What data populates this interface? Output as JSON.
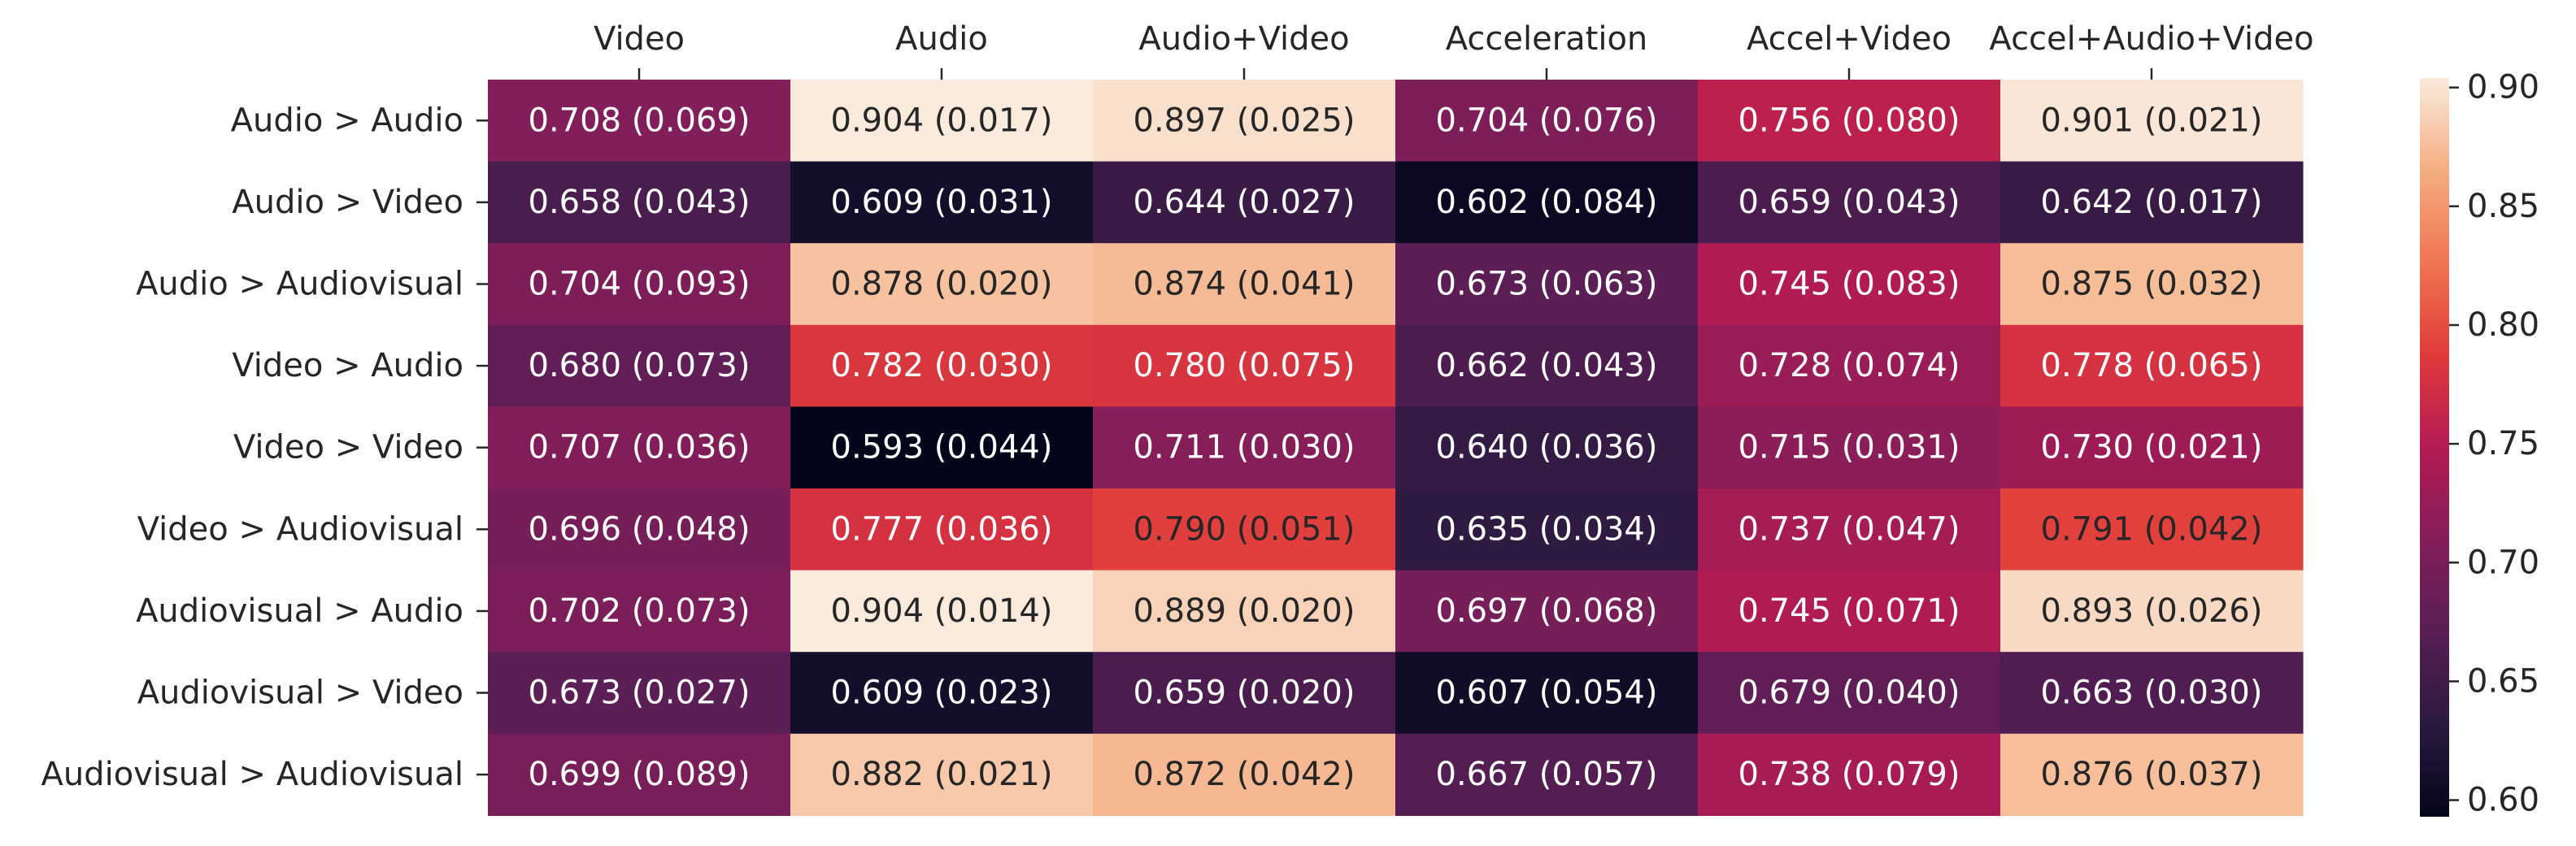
{
  "chart_data": {
    "type": "heatmap",
    "title": "",
    "xlabel": "",
    "ylabel": "",
    "columns": [
      "Video",
      "Audio",
      "Audio+Video",
      "Acceleration",
      "Accel+Video",
      "Accel+Audio+Video"
    ],
    "rows": [
      "Audio > Audio",
      "Audio > Video",
      "Audio > Audiovisual",
      "Video > Audio",
      "Video > Video",
      "Video > Audiovisual",
      "Audiovisual > Audio",
      "Audiovisual > Video",
      "Audiovisual > Audiovisual"
    ],
    "values": [
      [
        0.708,
        0.904,
        0.897,
        0.704,
        0.756,
        0.901
      ],
      [
        0.658,
        0.609,
        0.644,
        0.602,
        0.659,
        0.642
      ],
      [
        0.704,
        0.878,
        0.874,
        0.673,
        0.745,
        0.875
      ],
      [
        0.68,
        0.782,
        0.78,
        0.662,
        0.728,
        0.778
      ],
      [
        0.707,
        0.593,
        0.711,
        0.64,
        0.715,
        0.73
      ],
      [
        0.696,
        0.777,
        0.79,
        0.635,
        0.737,
        0.791
      ],
      [
        0.702,
        0.904,
        0.889,
        0.697,
        0.745,
        0.893
      ],
      [
        0.673,
        0.609,
        0.659,
        0.607,
        0.679,
        0.663
      ],
      [
        0.699,
        0.882,
        0.872,
        0.667,
        0.738,
        0.876
      ]
    ],
    "stds": [
      [
        0.069,
        0.017,
        0.025,
        0.076,
        0.08,
        0.021
      ],
      [
        0.043,
        0.031,
        0.027,
        0.084,
        0.043,
        0.017
      ],
      [
        0.093,
        0.02,
        0.041,
        0.063,
        0.083,
        0.032
      ],
      [
        0.073,
        0.03,
        0.075,
        0.043,
        0.074,
        0.065
      ],
      [
        0.036,
        0.044,
        0.03,
        0.036,
        0.031,
        0.021
      ],
      [
        0.048,
        0.036,
        0.051,
        0.034,
        0.047,
        0.042
      ],
      [
        0.073,
        0.014,
        0.02,
        0.068,
        0.071,
        0.026
      ],
      [
        0.027,
        0.023,
        0.02,
        0.054,
        0.04,
        0.03
      ],
      [
        0.089,
        0.021,
        0.042,
        0.057,
        0.079,
        0.037
      ]
    ],
    "colorbar": {
      "range": [
        0.593,
        0.904
      ],
      "ticks": [
        0.6,
        0.65,
        0.7,
        0.75,
        0.8,
        0.85,
        0.9
      ],
      "tick_labels": [
        "0.60",
        "0.65",
        "0.70",
        "0.75",
        "0.80",
        "0.85",
        "0.90"
      ],
      "colormap": "rocket",
      "stops": [
        "#03051a",
        "#2b1a3f",
        "#581e55",
        "#841e5a",
        "#b41b53",
        "#df3b3b",
        "#f07552",
        "#f4ad82",
        "#faebdd"
      ]
    },
    "column_label_position": "top",
    "grid": false,
    "legend": "colorbar-right"
  }
}
